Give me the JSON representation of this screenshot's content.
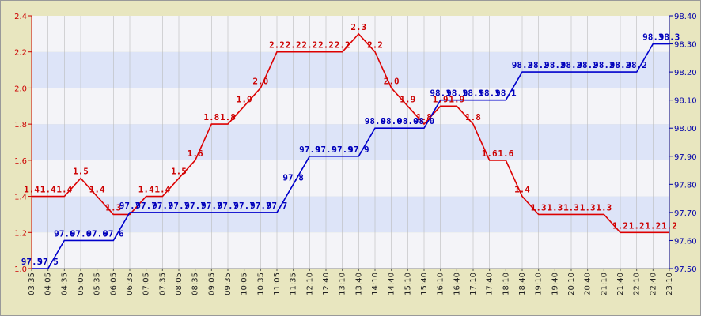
{
  "chart_data": {
    "type": "line",
    "x": [
      "03:35",
      "04:05",
      "04:35",
      "05:05",
      "05:35",
      "06:05",
      "06:35",
      "07:05",
      "07:35",
      "08:05",
      "08:35",
      "09:05",
      "09:35",
      "10:05",
      "10:35",
      "11:05",
      "11:35",
      "12:10",
      "12:40",
      "13:10",
      "13:40",
      "14:10",
      "14:40",
      "15:10",
      "15:40",
      "16:10",
      "16:40",
      "17:10",
      "17:40",
      "18:10",
      "18:40",
      "19:10",
      "19:40",
      "20:10",
      "20:40",
      "21:10",
      "21:40",
      "22:10",
      "22:40",
      "23:10"
    ],
    "series": [
      {
        "axis": "left",
        "color": "#dd0000",
        "points": [
          [
            "03:35",
            1.4
          ],
          [
            "04:05",
            1.4
          ],
          [
            "04:35",
            1.4
          ],
          [
            "05:05",
            1.5
          ],
          [
            "05:35",
            1.4
          ],
          [
            "06:05",
            1.3
          ],
          [
            "06:35",
            1.3
          ],
          [
            "07:05",
            1.4
          ],
          [
            "07:35",
            1.4
          ],
          [
            "08:05",
            1.5
          ],
          [
            "08:35",
            1.6
          ],
          [
            "09:05",
            1.8
          ],
          [
            "09:35",
            1.8
          ],
          [
            "10:05",
            1.9
          ],
          [
            "10:35",
            2.0
          ],
          [
            "11:05",
            2.2
          ],
          [
            "11:35",
            2.2
          ],
          [
            "12:10",
            2.2
          ],
          [
            "12:40",
            2.2
          ],
          [
            "13:10",
            2.2
          ],
          [
            "13:40",
            2.3
          ],
          [
            "14:10",
            2.2
          ],
          [
            "14:40",
            2.0
          ],
          [
            "15:10",
            1.9
          ],
          [
            "15:40",
            1.8
          ],
          [
            "16:10",
            1.9
          ],
          [
            "16:40",
            1.9
          ],
          [
            "17:10",
            1.8
          ],
          [
            "17:40",
            1.6
          ],
          [
            "18:10",
            1.6
          ],
          [
            "18:40",
            1.4
          ],
          [
            "19:10",
            1.3
          ],
          [
            "19:40",
            1.3
          ],
          [
            "20:10",
            1.3
          ],
          [
            "20:40",
            1.3
          ],
          [
            "21:10",
            1.3
          ],
          [
            "21:40",
            1.2
          ],
          [
            "22:10",
            1.2
          ],
          [
            "22:40",
            1.2
          ],
          [
            "23:10",
            1.2
          ]
        ],
        "labels": [
          {
            "x": "03:35",
            "y": 1.4,
            "text": "1.4"
          },
          {
            "x": "04:05",
            "y": 1.4,
            "text": "1.4"
          },
          {
            "x": "04:35",
            "y": 1.4,
            "text": "1.4"
          },
          {
            "x": "05:05",
            "y": 1.5,
            "text": "1.5"
          },
          {
            "x": "05:35",
            "y": 1.4,
            "text": "1.4"
          },
          {
            "x": "06:05",
            "y": 1.3,
            "text": "1.3"
          },
          {
            "x": "07:05",
            "y": 1.4,
            "text": "1.4"
          },
          {
            "x": "07:35",
            "y": 1.4,
            "text": "1.4"
          },
          {
            "x": "08:05",
            "y": 1.5,
            "text": "1.5"
          },
          {
            "x": "08:35",
            "y": 1.6,
            "text": "1.6"
          },
          {
            "x": "09:05",
            "y": 1.8,
            "text": "1.8"
          },
          {
            "x": "09:35",
            "y": 1.8,
            "text": "1.8"
          },
          {
            "x": "10:05",
            "y": 1.9,
            "text": "1.9"
          },
          {
            "x": "10:35",
            "y": 2.0,
            "text": "2.0"
          },
          {
            "x": "11:05",
            "y": 2.2,
            "text": "2.2"
          },
          {
            "x": "11:35",
            "y": 2.2,
            "text": "2.2"
          },
          {
            "x": "12:10",
            "y": 2.2,
            "text": "2.2"
          },
          {
            "x": "12:40",
            "y": 2.2,
            "text": "2.2"
          },
          {
            "x": "13:10",
            "y": 2.2,
            "text": "2.2"
          },
          {
            "x": "13:40",
            "y": 2.3,
            "text": "2.3"
          },
          {
            "x": "14:10",
            "y": 2.2,
            "text": "2.2"
          },
          {
            "x": "14:40",
            "y": 2.0,
            "text": "2.0"
          },
          {
            "x": "15:10",
            "y": 1.9,
            "text": "1.9"
          },
          {
            "x": "15:40",
            "y": 1.8,
            "text": "1.8"
          },
          {
            "x": "16:10",
            "y": 1.9,
            "text": "1.9"
          },
          {
            "x": "16:40",
            "y": 1.9,
            "text": "1.9"
          },
          {
            "x": "17:10",
            "y": 1.8,
            "text": "1.8"
          },
          {
            "x": "17:40",
            "y": 1.6,
            "text": "1.6"
          },
          {
            "x": "18:10",
            "y": 1.6,
            "text": "1.6"
          },
          {
            "x": "18:40",
            "y": 1.4,
            "text": "1.4"
          },
          {
            "x": "19:10",
            "y": 1.3,
            "text": "1.3"
          },
          {
            "x": "19:40",
            "y": 1.3,
            "text": "1.3"
          },
          {
            "x": "20:10",
            "y": 1.3,
            "text": "1.3"
          },
          {
            "x": "20:40",
            "y": 1.3,
            "text": "1.3"
          },
          {
            "x": "21:10",
            "y": 1.3,
            "text": "1.3"
          },
          {
            "x": "21:40",
            "y": 1.2,
            "text": "1.2"
          },
          {
            "x": "22:10",
            "y": 1.2,
            "text": "1.2"
          },
          {
            "x": "22:40",
            "y": 1.2,
            "text": "1.2"
          },
          {
            "x": "23:10",
            "y": 1.2,
            "text": "1.2"
          }
        ]
      },
      {
        "axis": "right",
        "color": "#0000cc",
        "points": [
          [
            "03:35",
            97.5
          ],
          [
            "04:05",
            97.5
          ],
          [
            "04:35",
            97.6
          ],
          [
            "05:05",
            97.6
          ],
          [
            "05:35",
            97.6
          ],
          [
            "06:05",
            97.6
          ],
          [
            "06:35",
            97.7
          ],
          [
            "07:05",
            97.7
          ],
          [
            "07:35",
            97.7
          ],
          [
            "08:05",
            97.7
          ],
          [
            "08:35",
            97.7
          ],
          [
            "09:05",
            97.7
          ],
          [
            "09:35",
            97.7
          ],
          [
            "10:05",
            97.7
          ],
          [
            "10:35",
            97.7
          ],
          [
            "11:05",
            97.7
          ],
          [
            "11:35",
            97.8
          ],
          [
            "12:10",
            97.9
          ],
          [
            "12:40",
            97.9
          ],
          [
            "13:10",
            97.9
          ],
          [
            "13:40",
            97.9
          ],
          [
            "14:10",
            98.0
          ],
          [
            "14:40",
            98.0
          ],
          [
            "15:10",
            98.0
          ],
          [
            "15:40",
            98.0
          ],
          [
            "16:10",
            98.1
          ],
          [
            "16:40",
            98.1
          ],
          [
            "17:10",
            98.1
          ],
          [
            "17:40",
            98.1
          ],
          [
            "18:10",
            98.1
          ],
          [
            "18:40",
            98.2
          ],
          [
            "19:10",
            98.2
          ],
          [
            "19:40",
            98.2
          ],
          [
            "20:10",
            98.2
          ],
          [
            "20:40",
            98.2
          ],
          [
            "21:10",
            98.2
          ],
          [
            "21:40",
            98.2
          ],
          [
            "22:10",
            98.2
          ],
          [
            "22:40",
            98.3
          ],
          [
            "23:10",
            98.3
          ]
        ],
        "labels": [
          {
            "x": "03:35",
            "y": 97.5,
            "text": "97.5"
          },
          {
            "x": "04:05",
            "y": 97.5,
            "text": "97.5"
          },
          {
            "x": "04:35",
            "y": 97.6,
            "text": "97.6"
          },
          {
            "x": "05:05",
            "y": 97.6,
            "text": "97.6"
          },
          {
            "x": "05:35",
            "y": 97.6,
            "text": "97.6"
          },
          {
            "x": "06:05",
            "y": 97.6,
            "text": "97.6"
          },
          {
            "x": "06:35",
            "y": 97.7,
            "text": "97.7"
          },
          {
            "x": "07:05",
            "y": 97.7,
            "text": "97.7"
          },
          {
            "x": "07:35",
            "y": 97.7,
            "text": "97.7"
          },
          {
            "x": "08:05",
            "y": 97.7,
            "text": "97.7"
          },
          {
            "x": "08:35",
            "y": 97.7,
            "text": "97.7"
          },
          {
            "x": "09:05",
            "y": 97.7,
            "text": "97.7"
          },
          {
            "x": "09:35",
            "y": 97.7,
            "text": "97.7"
          },
          {
            "x": "10:05",
            "y": 97.7,
            "text": "97.7"
          },
          {
            "x": "10:35",
            "y": 97.7,
            "text": "97.7"
          },
          {
            "x": "11:05",
            "y": 97.7,
            "text": "97.7"
          },
          {
            "x": "11:35",
            "y": 97.8,
            "text": "97.8"
          },
          {
            "x": "12:10",
            "y": 97.9,
            "text": "97.9"
          },
          {
            "x": "12:40",
            "y": 97.9,
            "text": "97.9"
          },
          {
            "x": "13:10",
            "y": 97.9,
            "text": "97.9"
          },
          {
            "x": "13:40",
            "y": 97.9,
            "text": "97.9"
          },
          {
            "x": "14:10",
            "y": 98.0,
            "text": "98.0"
          },
          {
            "x": "14:40",
            "y": 98.0,
            "text": "98.0"
          },
          {
            "x": "15:10",
            "y": 98.0,
            "text": "98.0"
          },
          {
            "x": "15:40",
            "y": 98.0,
            "text": "98.0"
          },
          {
            "x": "16:10",
            "y": 98.1,
            "text": "98.1"
          },
          {
            "x": "16:40",
            "y": 98.1,
            "text": "98.1"
          },
          {
            "x": "17:10",
            "y": 98.1,
            "text": "98.1"
          },
          {
            "x": "17:40",
            "y": 98.1,
            "text": "98.1"
          },
          {
            "x": "18:10",
            "y": 98.1,
            "text": "98.1"
          },
          {
            "x": "18:40",
            "y": 98.2,
            "text": "98.2"
          },
          {
            "x": "19:10",
            "y": 98.2,
            "text": "98.2"
          },
          {
            "x": "19:40",
            "y": 98.2,
            "text": "98.2"
          },
          {
            "x": "20:10",
            "y": 98.2,
            "text": "98.2"
          },
          {
            "x": "20:40",
            "y": 98.2,
            "text": "98.2"
          },
          {
            "x": "21:10",
            "y": 98.2,
            "text": "98.2"
          },
          {
            "x": "21:40",
            "y": 98.2,
            "text": "98.2"
          },
          {
            "x": "22:10",
            "y": 98.2,
            "text": "98.2"
          },
          {
            "x": "22:40",
            "y": 98.3,
            "text": "98.3"
          },
          {
            "x": "23:10",
            "y": 98.3,
            "text": "98.3"
          }
        ]
      }
    ],
    "left_axis": {
      "min": 1.0,
      "max": 2.4,
      "ticks": [
        "1.0",
        "1.2",
        "1.4",
        "1.6",
        "1.8",
        "2.0",
        "2.2",
        "2.4"
      ],
      "color": "#cc0000"
    },
    "right_axis": {
      "min": 97.5,
      "max": 98.4,
      "ticks": [
        "97.50",
        "97.60",
        "97.70",
        "97.80",
        "97.90",
        "98.00",
        "98.10",
        "98.20",
        "98.30",
        "98.40"
      ],
      "color": "#0000aa"
    },
    "grid": true,
    "band_colors": [
      "#f4f4f8",
      "#dde4f8"
    ],
    "background": "#e8e6bf"
  }
}
